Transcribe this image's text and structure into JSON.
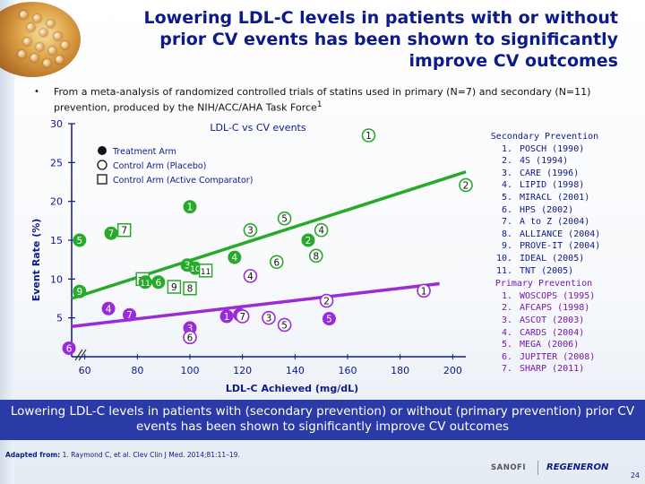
{
  "title": "Lowering LDL-C levels in patients with or without prior CV events has been shown to significantly improve CV outcomes",
  "bullet": "From a meta-analysis  of randomized controlled trials of statins used in primary (N=7) and secondary (N=11) prevention, produced by the NIH/ACC/AHA Task Force",
  "bullet_sup": "1",
  "conclusion": "Lowering LDL-C levels in patients with (secondary prevention) or without (primary prevention) prior CV events has been shown to significantly improve CV outcomes",
  "footnote_label": "Adapted from:",
  "footnote_text": "1. Raymond C, et al. Clev Clin J Med. 2014;81:11–19.",
  "logo_sanofi": "SANOFI",
  "logo_regeneron": "REGENERON",
  "page_number": "24",
  "colors": {
    "title": "#0c1a8a",
    "secondary": "#27aa2a",
    "primary": "#9a2bd8",
    "conclusion_bg": "#2a3aa6"
  },
  "secondary_prevention": {
    "heading": "Secondary Prevention",
    "trials": [
      "POSCH (1990)",
      "4S (1994)",
      "CARE (1996)",
      "LIPID (1998)",
      "MIRACL (2001)",
      "HPS (2002)",
      "A to Z (2004)",
      "ALLIANCE (2004)",
      "PROVE-IT (2004)",
      "IDEAL (2005)",
      "TNT (2005)"
    ]
  },
  "primary_prevention": {
    "heading": "Primary Prevention",
    "trials": [
      "WOSCOPS (1995)",
      "AFCAPS (1998)",
      "ASCOT (2003)",
      "CARDS (2004)",
      "MEGA (2006)",
      "JUPITER (2008)",
      "SHARP (2011)"
    ]
  },
  "chart_data": {
    "type": "scatter",
    "title": "LDL-C vs CV events",
    "xlabel": "LDL-C Achieved (mg/dL)",
    "ylabel": "Event Rate (%)",
    "xlim": [
      55,
      205
    ],
    "ylim": [
      0,
      30
    ],
    "x_ticks": [
      "60",
      "80",
      "100",
      "120",
      "140",
      "160",
      "180",
      "200"
    ],
    "y_ticks": [
      "5",
      "10",
      "15",
      "20",
      "25",
      "30"
    ],
    "legend": {
      "position": "top-left",
      "entries": [
        {
          "marker": "filled-circle",
          "label": "Treatment Arm"
        },
        {
          "marker": "open-circle",
          "label": "Control Arm (Placebo)"
        },
        {
          "marker": "open-square",
          "label": "Control Arm (Active Comparator)"
        }
      ]
    },
    "series": [
      {
        "name": "Secondary Prevention",
        "points": [
          {
            "label": "1",
            "x": 100,
            "y": 19.3,
            "marker": "filled-circle"
          },
          {
            "label": "1",
            "x": 168,
            "y": 28.5,
            "marker": "open-circle"
          },
          {
            "label": "2",
            "x": 205,
            "y": 22.1,
            "marker": "open-circle"
          },
          {
            "label": "2",
            "x": 145,
            "y": 15.0,
            "marker": "filled-circle"
          },
          {
            "label": "3",
            "x": 123,
            "y": 16.3,
            "marker": "open-circle"
          },
          {
            "label": "3",
            "x": 99,
            "y": 11.8,
            "marker": "filled-circle"
          },
          {
            "label": "4",
            "x": 150,
            "y": 16.3,
            "marker": "open-circle"
          },
          {
            "label": "4",
            "x": 117,
            "y": 12.8,
            "marker": "filled-circle"
          },
          {
            "label": "5",
            "x": 136,
            "y": 17.8,
            "marker": "open-circle"
          },
          {
            "label": "5",
            "x": 58,
            "y": 15.0,
            "marker": "filled-circle"
          },
          {
            "label": "6",
            "x": 133,
            "y": 12.2,
            "marker": "open-circle"
          },
          {
            "label": "6",
            "x": 88,
            "y": 9.6,
            "marker": "filled-circle"
          },
          {
            "label": "7",
            "x": 70,
            "y": 15.9,
            "marker": "filled-circle"
          },
          {
            "label": "7",
            "x": 75,
            "y": 16.3,
            "marker": "open-square"
          },
          {
            "label": "8",
            "x": 148,
            "y": 13.0,
            "marker": "open-circle"
          },
          {
            "label": "8",
            "x": 100,
            "y": 8.8,
            "marker": "open-square"
          },
          {
            "label": "9",
            "x": 58,
            "y": 8.4,
            "marker": "filled-circle"
          },
          {
            "label": "9",
            "x": 94,
            "y": 9.0,
            "marker": "open-square"
          },
          {
            "label": "10",
            "x": 102,
            "y": 11.4,
            "marker": "filled-circle"
          },
          {
            "label": "10",
            "x": 82,
            "y": 10.0,
            "marker": "open-square"
          },
          {
            "label": "11",
            "x": 106,
            "y": 11.1,
            "marker": "open-square"
          },
          {
            "label": "11",
            "x": 83,
            "y": 9.6,
            "marker": "filled-circle"
          }
        ]
      },
      {
        "name": "Primary Prevention",
        "points": [
          {
            "label": "1",
            "x": 189,
            "y": 8.5,
            "marker": "open-circle"
          },
          {
            "label": "1",
            "x": 114,
            "y": 5.2,
            "marker": "filled-circle"
          },
          {
            "label": "2",
            "x": 152,
            "y": 7.2,
            "marker": "open-circle"
          },
          {
            "label": "2",
            "x": 119,
            "y": 5.4,
            "marker": "filled-circle"
          },
          {
            "label": "3",
            "x": 130,
            "y": 5.0,
            "marker": "open-circle"
          },
          {
            "label": "3",
            "x": 100,
            "y": 3.7,
            "marker": "filled-circle"
          },
          {
            "label": "4",
            "x": 123,
            "y": 10.4,
            "marker": "open-circle"
          },
          {
            "label": "4",
            "x": 69,
            "y": 6.2,
            "marker": "filled-circle"
          },
          {
            "label": "5",
            "x": 136,
            "y": 4.1,
            "marker": "open-circle"
          },
          {
            "label": "5",
            "x": 153,
            "y": 4.9,
            "marker": "filled-circle"
          },
          {
            "label": "6",
            "x": 100,
            "y": 2.5,
            "marker": "open-circle"
          },
          {
            "label": "6",
            "x": 54,
            "y": 1.1,
            "marker": "filled-circle"
          },
          {
            "label": "7",
            "x": 77,
            "y": 5.4,
            "marker": "filled-circle"
          },
          {
            "label": "7",
            "x": 120,
            "y": 5.2,
            "marker": "open-circle"
          }
        ]
      }
    ],
    "trend_lines": [
      {
        "series": "Secondary Prevention",
        "from": [
          55,
          7.5
        ],
        "to": [
          205,
          23.8
        ]
      },
      {
        "series": "Primary Prevention",
        "from": [
          55,
          3.9
        ],
        "to": [
          195,
          9.4
        ]
      }
    ]
  }
}
